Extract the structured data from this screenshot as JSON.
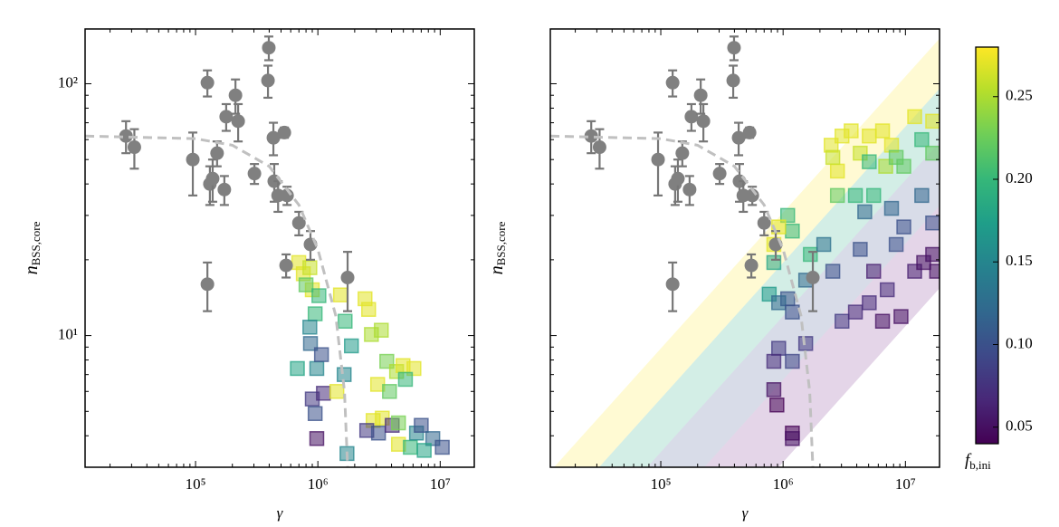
{
  "chart_data": [
    {
      "type": "scatter",
      "xlabel": "γ",
      "ylabel": "n",
      "ylabel_sub": "BSS,core",
      "xlim": [
        12500,
        19000000
      ],
      "ylim": [
        3,
        165
      ],
      "xscale": "log",
      "yscale": "log",
      "xticks": [
        {
          "value": 100000,
          "label": "10⁵"
        },
        {
          "value": 1000000,
          "label": "10⁶"
        },
        {
          "value": 10000000,
          "label": "10⁷"
        }
      ],
      "yticks": [
        {
          "value": 10,
          "label": "10¹"
        },
        {
          "value": 100,
          "label": "10²"
        }
      ],
      "xticks_minor": [
        20000,
        30000,
        40000,
        50000,
        60000,
        70000,
        80000,
        90000,
        200000,
        300000,
        400000,
        500000,
        600000,
        700000,
        800000,
        900000,
        2000000,
        3000000,
        4000000,
        5000000,
        6000000,
        7000000,
        8000000,
        9000000
      ],
      "yticks_minor": [
        4,
        5,
        6,
        7,
        8,
        9,
        20,
        30,
        40,
        50,
        60,
        70,
        80,
        90
      ],
      "show_ytick_labels": true,
      "simulated": {
        "x": [
          698000,
          760000,
          860000,
          900000,
          800000,
          1020000,
          950000,
          860000,
          870000,
          680000,
          980000,
          1070000,
          900000,
          1110000,
          950000,
          980000,
          1530000,
          1670000,
          1880000,
          1640000,
          1730000,
          2430000,
          2600000,
          2740000,
          3300000,
          3660000,
          3080000,
          2830000,
          3360000,
          3850000,
          4400000,
          4970000,
          6100000,
          5200000,
          2510000,
          3130000,
          4050000,
          4560000,
          5700000,
          6400000,
          7000000,
          8700000,
          10400000,
          7400000,
          1430000,
          4560000
        ],
        "values": [
          19.5,
          17.6,
          18.6,
          15.2,
          15.9,
          14.4,
          12.2,
          10.8,
          9.3,
          7.4,
          7.4,
          8.4,
          5.6,
          5.9,
          4.9,
          3.9,
          14.5,
          11.4,
          9.1,
          7.0,
          3.4,
          14.0,
          12.7,
          10.1,
          10.5,
          7.9,
          6.4,
          4.6,
          4.7,
          6.0,
          7.2,
          7.6,
          7.4,
          6.7,
          4.2,
          4.1,
          4.4,
          3.7,
          3.6,
          4.1,
          4.4,
          3.9,
          3.6,
          3.5,
          6.0,
          4.5
        ],
        "fb": [
          0.27,
          0.27,
          0.26,
          0.27,
          0.22,
          0.2,
          0.2,
          0.15,
          0.12,
          0.18,
          0.15,
          0.1,
          0.08,
          0.07,
          0.1,
          0.05,
          0.27,
          0.2,
          0.17,
          0.15,
          0.15,
          0.27,
          0.27,
          0.25,
          0.25,
          0.23,
          0.27,
          0.27,
          0.27,
          0.22,
          0.25,
          0.27,
          0.27,
          0.2,
          0.08,
          0.1,
          0.07,
          0.27,
          0.2,
          0.15,
          0.1,
          0.12,
          0.1,
          0.18,
          0.27,
          0.23
        ]
      }
    },
    {
      "type": "scatter",
      "xlabel": "γ",
      "ylabel": "n",
      "ylabel_sub": "BSS,core",
      "xlim": [
        12500,
        19000000
      ],
      "ylim": [
        3,
        165
      ],
      "xscale": "log",
      "yscale": "log",
      "xticks": [
        {
          "value": 100000,
          "label": "10⁵"
        },
        {
          "value": 1000000,
          "label": "10⁶"
        },
        {
          "value": 10000000,
          "label": "10⁷"
        }
      ],
      "yticks": [
        10,
        100
      ],
      "xticks_minor": [
        20000,
        30000,
        40000,
        50000,
        60000,
        70000,
        80000,
        90000,
        200000,
        300000,
        400000,
        500000,
        600000,
        700000,
        800000,
        900000,
        2000000,
        3000000,
        4000000,
        5000000,
        6000000,
        7000000,
        8000000,
        9000000
      ],
      "yticks_minor": [
        4,
        5,
        6,
        7,
        8,
        9,
        20,
        30,
        40,
        50,
        60,
        70,
        80,
        90
      ],
      "show_ytick_labels": false,
      "bands": {
        "colors": [
          "#fde725",
          "#22a884",
          "#3b528b",
          "#7a2f8a"
        ],
        "edges": [
          {
            "x": [
              13400,
              134000000
            ],
            "y": [
              3,
              434
            ]
          },
          {
            "x": [
              31300,
              313000000
            ],
            "y": [
              3,
              434
            ]
          },
          {
            "x": [
              77400,
              774000000
            ],
            "y": [
              3,
              434
            ]
          },
          {
            "x": [
              227000,
              2270000000
            ],
            "y": [
              3,
              434
            ]
          },
          {
            "x": [
              918000,
              9180000000
            ],
            "y": [
              3,
              434
            ]
          }
        ]
      },
      "simulated": {
        "x": [
          2470000,
          3030000,
          3600000,
          4270000,
          5060000,
          6500000,
          7700000,
          11900000,
          16700000,
          2780000,
          2550000,
          6900000,
          8400000,
          5060000,
          9700000,
          13600000,
          16700000,
          3900000,
          5500000,
          2780000,
          1090000,
          1190000,
          840000,
          770000,
          1670000,
          920000,
          840000,
          2150000,
          4650000,
          7700000,
          13600000,
          1090000,
          1530000,
          2550000,
          4270000,
          9700000,
          16700000,
          920000,
          1190000,
          1530000,
          920000,
          840000,
          1190000,
          840000,
          890000,
          1190000,
          1190000,
          3030000,
          3900000,
          5060000,
          7100000,
          11900000,
          16700000,
          14100000,
          6500000,
          9200000,
          5500000,
          8400000,
          18000000
        ],
        "values": [
          57,
          62,
          65,
          53,
          62,
          65,
          57,
          74,
          71,
          45,
          51,
          47,
          51,
          49,
          47,
          60,
          53,
          36,
          36,
          36,
          30,
          26,
          19.5,
          14.6,
          21,
          27,
          23,
          23,
          31,
          32,
          36,
          14.0,
          16.6,
          18.0,
          22,
          27,
          28,
          13.5,
          12.4,
          9.3,
          8.9,
          7.9,
          7.9,
          6.1,
          5.3,
          4.1,
          3.9,
          11.4,
          12.4,
          13.5,
          15.2,
          18.0,
          21,
          19.5,
          11.4,
          11.9,
          18.0,
          23,
          18.0
        ],
        "fb": [
          0.27,
          0.27,
          0.27,
          0.26,
          0.27,
          0.27,
          0.27,
          0.27,
          0.27,
          0.27,
          0.26,
          0.25,
          0.22,
          0.2,
          0.22,
          0.2,
          0.22,
          0.2,
          0.2,
          0.22,
          0.2,
          0.2,
          0.18,
          0.17,
          0.2,
          0.27,
          0.27,
          0.13,
          0.12,
          0.12,
          0.12,
          0.1,
          0.12,
          0.1,
          0.1,
          0.1,
          0.1,
          0.12,
          0.1,
          0.08,
          0.08,
          0.07,
          0.09,
          0.05,
          0.04,
          0.04,
          0.05,
          0.08,
          0.07,
          0.07,
          0.07,
          0.06,
          0.05,
          0.05,
          0.05,
          0.05,
          0.06,
          0.1,
          0.05
        ]
      }
    }
  ],
  "observed": {
    "color": "#808080",
    "x": [
      27000,
      31600,
      95000,
      125000,
      131000,
      138000,
      150000,
      172000,
      178000,
      212000,
      223000,
      125000,
      303000,
      391000,
      397000,
      433000,
      440000,
      473000,
      532000,
      560000,
      550000,
      700000,
      870000,
      1750000
    ],
    "values": [
      62,
      56,
      50,
      101,
      40,
      42,
      53,
      38,
      74,
      90,
      71,
      16,
      44,
      103,
      139,
      61,
      41,
      36,
      64,
      36,
      19,
      28,
      23,
      17
    ],
    "errors": [
      9,
      10,
      14,
      12,
      7,
      8,
      6,
      5,
      9,
      14,
      12,
      3.5,
      4,
      15,
      15,
      9,
      7,
      5,
      3,
      3,
      2,
      3,
      3,
      4.5
    ]
  },
  "curve": {
    "color": "#c0c0c0",
    "x": [
      12500,
      100000,
      200000,
      400000,
      700000,
      1000000,
      1400000,
      1650000,
      1750000
    ],
    "values": [
      62,
      60.5,
      57,
      47,
      33,
      22,
      12,
      6,
      3
    ]
  },
  "colorbar": {
    "label": "f",
    "label_sub": "b,ini",
    "colormap": "viridis",
    "lim": [
      0.04,
      0.28
    ],
    "ticks": [
      0.05,
      {
        "value": 0.1,
        "label": "0.10"
      },
      0.15,
      {
        "value": 0.2,
        "label": "0.20"
      },
      0.25
    ]
  }
}
